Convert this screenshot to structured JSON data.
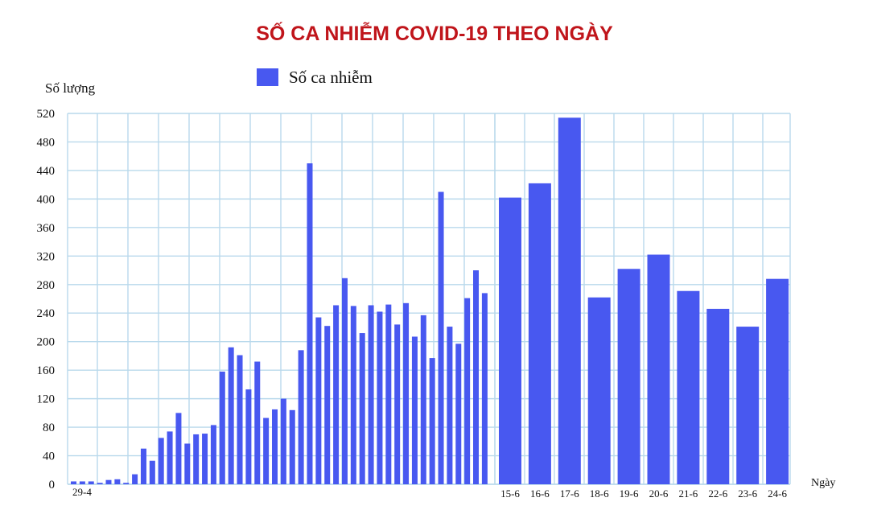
{
  "chart_data": {
    "type": "bar",
    "title": "SỐ CA NHIỄM COVID-19 THEO NGÀY",
    "ylabel": "Số lượng",
    "xlabel": "Ngày",
    "ylim": [
      0,
      520
    ],
    "yticks": [
      0,
      40,
      80,
      120,
      160,
      200,
      240,
      280,
      320,
      360,
      400,
      440,
      480,
      520
    ],
    "grid": true,
    "legend": "top-left",
    "bar_color": "#4858f0",
    "grid_color": "#b9d9ec",
    "title_color": "#c0151b",
    "first_label": "29-4",
    "series": [
      {
        "name": "Số ca nhiễm",
        "early_values": [
          4,
          4,
          4,
          2,
          6,
          7,
          2,
          14,
          50,
          33,
          65,
          74,
          100,
          57,
          70,
          71,
          83,
          158,
          192,
          181,
          133,
          172,
          93,
          105,
          120,
          104,
          188,
          450,
          234,
          222,
          251,
          289,
          250,
          212,
          251,
          242,
          252,
          224,
          254,
          207,
          237,
          177,
          410,
          221,
          197,
          261,
          300,
          268
        ],
        "late_categories": [
          "15-6",
          "16-6",
          "17-6",
          "18-6",
          "19-6",
          "20-6",
          "21-6",
          "22-6",
          "23-6",
          "24-6"
        ],
        "late_values": [
          402,
          422,
          514,
          262,
          302,
          322,
          271,
          246,
          221,
          288
        ]
      }
    ]
  }
}
